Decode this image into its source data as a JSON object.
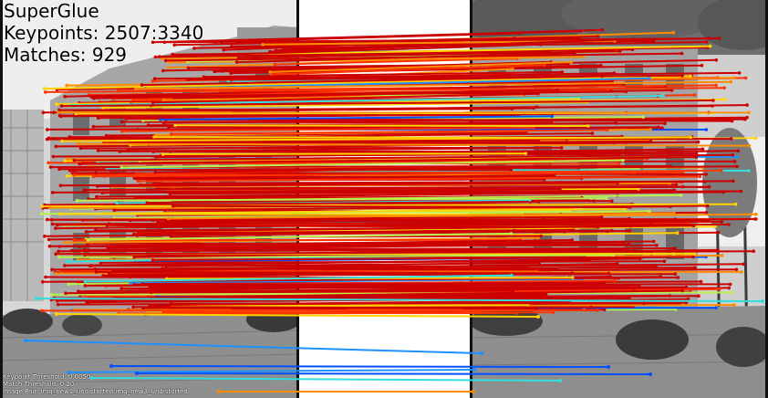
{
  "overlay": {
    "method": "SuperGlue",
    "keypoints_line": "Keypoints: 2507:3340",
    "matches_line": "Matches: 929",
    "keypoint_threshold": "Keypoint Threshold: 0.0050",
    "match_threshold": "Match Threshold: 0.20",
    "image_pair": "Image Pair: img_new1_undistorted:img_new3_undistorted"
  },
  "colors": {
    "dominant_match": "#cc0000",
    "confidence_palette": [
      "#cc0000",
      "#ff3300",
      "#ff8c00",
      "#ffd400",
      "#b8f050",
      "#33dddd",
      "#1e90ff",
      "#0050ff"
    ],
    "background_gap": "#ffffff"
  }
}
